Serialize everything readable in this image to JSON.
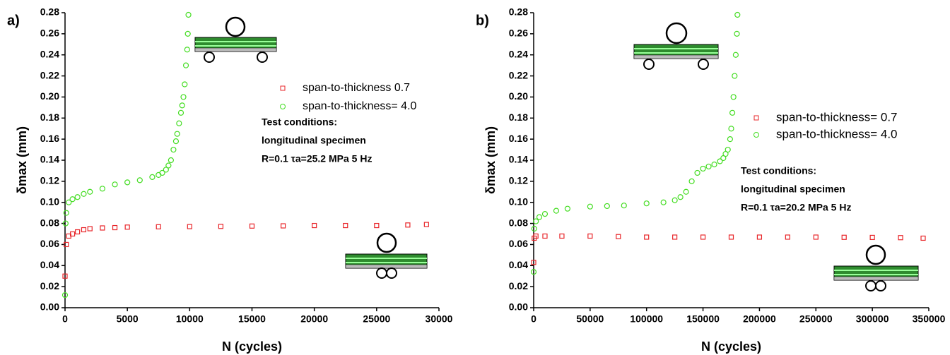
{
  "chart_data": [
    {
      "type": "scatter",
      "panel_label": "a)",
      "x_label": "N (cycles)",
      "y_label": "δmax (mm)",
      "xlim": [
        0,
        30000
      ],
      "xticks": [
        0,
        5000,
        10000,
        15000,
        20000,
        25000,
        30000
      ],
      "ylim": [
        0,
        0.28
      ],
      "yticks": [
        {
          "value": 0,
          "label": "0.00"
        },
        {
          "value": 0.02,
          "label": "0.02"
        },
        {
          "value": 0.04,
          "label": "0.04"
        },
        {
          "value": 0.06,
          "label": "0.06"
        },
        {
          "value": 0.08,
          "label": "0.08"
        },
        {
          "value": 0.1,
          "label": "0.10"
        },
        {
          "value": 0.12,
          "label": "0.12"
        },
        {
          "value": 0.14,
          "label": "0.14"
        },
        {
          "value": 0.16,
          "label": "0.16"
        },
        {
          "value": 0.18,
          "label": "0.18"
        },
        {
          "value": 0.2,
          "label": "0.20"
        },
        {
          "value": 0.22,
          "label": "0.22"
        },
        {
          "value": 0.24,
          "label": "0.24"
        },
        {
          "value": 0.26,
          "label": "0.26"
        },
        {
          "value": 0.28,
          "label": "0.28"
        }
      ],
      "annotation": [
        "Test conditions:",
        "longitudinal specimen",
        "R=0.1  τa=25.2 MPa  5 Hz"
      ],
      "series": [
        {
          "name": "span-to-thickness 0.7",
          "color": "#e8262a",
          "marker": "square",
          "x": [
            0,
            100,
            300,
            600,
            1000,
            1500,
            2000,
            3000,
            4000,
            5000,
            7500,
            10000,
            12500,
            15000,
            17500,
            20000,
            22500,
            25000,
            27500,
            29000
          ],
          "values": [
            0.03,
            0.06,
            0.068,
            0.07,
            0.072,
            0.074,
            0.075,
            0.0757,
            0.076,
            0.0765,
            0.0768,
            0.077,
            0.0772,
            0.0775,
            0.0777,
            0.078,
            0.078,
            0.078,
            0.0785,
            0.079
          ]
        },
        {
          "name": "span-to-thickness= 4.0",
          "color": "#44dd22",
          "marker": "circle",
          "x": [
            0,
            50,
            100,
            300,
            600,
            1000,
            1500,
            2000,
            3000,
            4000,
            5000,
            6000,
            7000,
            7500,
            7800,
            8100,
            8300,
            8500,
            8700,
            8900,
            9000,
            9150,
            9300,
            9400,
            9500,
            9600,
            9700,
            9800,
            9850,
            9900
          ],
          "values": [
            0.012,
            0.08,
            0.09,
            0.1,
            0.103,
            0.105,
            0.108,
            0.11,
            0.113,
            0.117,
            0.119,
            0.121,
            0.124,
            0.126,
            0.128,
            0.131,
            0.135,
            0.14,
            0.15,
            0.158,
            0.165,
            0.175,
            0.185,
            0.192,
            0.2,
            0.212,
            0.23,
            0.245,
            0.26,
            0.278
          ]
        }
      ]
    },
    {
      "type": "scatter",
      "panel_label": "b)",
      "x_label": "N (cycles)",
      "y_label": "δmax (mm)",
      "xlim": [
        0,
        350000
      ],
      "xticks": [
        0,
        50000,
        100000,
        150000,
        200000,
        250000,
        300000,
        350000
      ],
      "ylim": [
        0,
        0.28
      ],
      "yticks": [
        {
          "value": 0,
          "label": "0.00"
        },
        {
          "value": 0.02,
          "label": "0.02"
        },
        {
          "value": 0.04,
          "label": "0.04"
        },
        {
          "value": 0.06,
          "label": "0.06"
        },
        {
          "value": 0.08,
          "label": "0.08"
        },
        {
          "value": 0.1,
          "label": "0.10"
        },
        {
          "value": 0.12,
          "label": "0.12"
        },
        {
          "value": 0.14,
          "label": "0.14"
        },
        {
          "value": 0.16,
          "label": "0.16"
        },
        {
          "value": 0.18,
          "label": "0.18"
        },
        {
          "value": 0.2,
          "label": "0.20"
        },
        {
          "value": 0.22,
          "label": "0.22"
        },
        {
          "value": 0.24,
          "label": "0.24"
        },
        {
          "value": 0.26,
          "label": "0.26"
        },
        {
          "value": 0.28,
          "label": "0.28"
        }
      ],
      "annotation": [
        "Test conditions:",
        "longitudinal specimen",
        "R=0.1  τa=20.2 MPa  5 Hz"
      ],
      "series": [
        {
          "name": "span-to-thickness=  0.7",
          "color": "#e8262a",
          "marker": "square",
          "x": [
            0,
            500,
            2000,
            10000,
            25000,
            50000,
            75000,
            100000,
            125000,
            150000,
            175000,
            200000,
            225000,
            250000,
            275000,
            300000,
            325000,
            345000
          ],
          "values": [
            0.043,
            0.066,
            0.068,
            0.068,
            0.068,
            0.068,
            0.0675,
            0.067,
            0.067,
            0.067,
            0.067,
            0.067,
            0.067,
            0.067,
            0.0668,
            0.0667,
            0.0665,
            0.066
          ]
        },
        {
          "name": "span-to-thickness= 4.0",
          "color": "#44dd22",
          "marker": "circle",
          "x": [
            0,
            500,
            2000,
            5000,
            10000,
            20000,
            30000,
            50000,
            65000,
            80000,
            100000,
            115000,
            125000,
            130000,
            135000,
            140000,
            145000,
            150000,
            155000,
            160000,
            165000,
            168000,
            170000,
            172000,
            174000,
            175000,
            176000,
            177000,
            178000,
            179000,
            180000,
            180500
          ],
          "values": [
            0.034,
            0.075,
            0.082,
            0.086,
            0.089,
            0.092,
            0.094,
            0.096,
            0.0965,
            0.097,
            0.099,
            0.1,
            0.102,
            0.105,
            0.11,
            0.12,
            0.128,
            0.132,
            0.134,
            0.136,
            0.139,
            0.142,
            0.146,
            0.15,
            0.16,
            0.17,
            0.185,
            0.2,
            0.22,
            0.24,
            0.26,
            0.278
          ]
        }
      ]
    }
  ]
}
